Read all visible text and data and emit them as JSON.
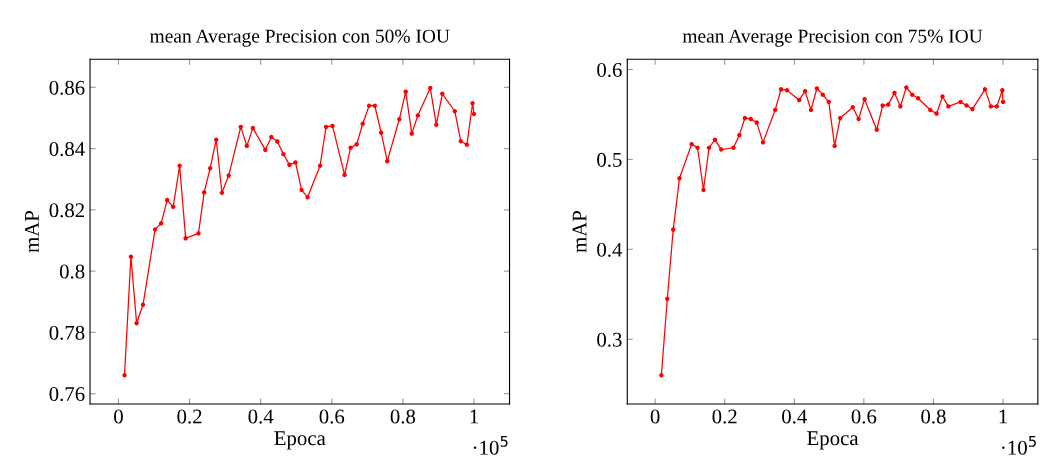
{
  "chart_data": [
    {
      "type": "line",
      "title": "mean Average Precision con 50% IOU",
      "xlabel": "Epoca",
      "ylabel": "mAP",
      "color": "#ff0000",
      "marker": "circle",
      "annotations": [
        "·10$^{5}$"
      ],
      "x": [
        0.017,
        0.035,
        0.051,
        0.069,
        0.103,
        0.12,
        0.137,
        0.154,
        0.172,
        0.189,
        0.225,
        0.241,
        0.258,
        0.275,
        0.291,
        0.31,
        0.344,
        0.361,
        0.378,
        0.413,
        0.43,
        0.447,
        0.464,
        0.481,
        0.498,
        0.515,
        0.532,
        0.567,
        0.584,
        0.602,
        0.636,
        0.653,
        0.67,
        0.687,
        0.705,
        0.721,
        0.739,
        0.756,
        0.79,
        0.808,
        0.825,
        0.842,
        0.877,
        0.894,
        0.911,
        0.946,
        0.963,
        0.98,
        0.996,
        1.0
      ],
      "values": [
        0.766,
        0.8047,
        0.783,
        0.789,
        0.8136,
        0.8156,
        0.8232,
        0.821,
        0.8344,
        0.8107,
        0.8123,
        0.8257,
        0.8336,
        0.8429,
        0.8256,
        0.8312,
        0.8471,
        0.8409,
        0.8467,
        0.8396,
        0.8438,
        0.8423,
        0.8382,
        0.8347,
        0.8355,
        0.8265,
        0.8241,
        0.8344,
        0.8471,
        0.8474,
        0.8314,
        0.8403,
        0.8414,
        0.8481,
        0.854,
        0.854,
        0.8452,
        0.8359,
        0.8496,
        0.8586,
        0.8449,
        0.8508,
        0.8598,
        0.8478,
        0.8579,
        0.8522,
        0.8424,
        0.8413,
        0.8548,
        0.8513
      ],
      "xlim": [
        -0.08,
        1.1
      ],
      "ylim": [
        0.7566,
        0.8692
      ],
      "xticks": [
        0,
        0.2,
        0.4,
        0.6,
        0.8,
        1
      ],
      "yticks": [
        0.76,
        0.78,
        0.8,
        0.82,
        0.84,
        0.86
      ]
    },
    {
      "type": "line",
      "title": "mean Average Precision con 75% IOU",
      "xlabel": "Epoca",
      "ylabel": "mAP",
      "color": "#ff0000",
      "marker": "circle",
      "annotations": [
        "·10$^{5}$"
      ],
      "x": [
        0.018,
        0.035,
        0.052,
        0.07,
        0.105,
        0.122,
        0.139,
        0.155,
        0.172,
        0.19,
        0.225,
        0.242,
        0.258,
        0.275,
        0.292,
        0.31,
        0.345,
        0.362,
        0.379,
        0.414,
        0.431,
        0.448,
        0.465,
        0.482,
        0.499,
        0.516,
        0.532,
        0.568,
        0.585,
        0.602,
        0.637,
        0.654,
        0.67,
        0.688,
        0.705,
        0.722,
        0.739,
        0.756,
        0.791,
        0.809,
        0.826,
        0.843,
        0.878,
        0.895,
        0.912,
        0.948,
        0.965,
        0.982,
        0.998,
        1.0
      ],
      "values": [
        0.26,
        0.345,
        0.422,
        0.479,
        0.517,
        0.513,
        0.466,
        0.513,
        0.522,
        0.511,
        0.513,
        0.527,
        0.546,
        0.545,
        0.541,
        0.519,
        0.555,
        0.578,
        0.577,
        0.566,
        0.576,
        0.555,
        0.579,
        0.572,
        0.564,
        0.515,
        0.546,
        0.558,
        0.545,
        0.567,
        0.533,
        0.56,
        0.561,
        0.574,
        0.559,
        0.58,
        0.572,
        0.568,
        0.555,
        0.551,
        0.57,
        0.559,
        0.564,
        0.56,
        0.556,
        0.578,
        0.559,
        0.559,
        0.577,
        0.564
      ],
      "xlim": [
        -0.08,
        1.1
      ],
      "ylim": [
        0.228,
        0.6115
      ],
      "xticks": [
        0,
        0.2,
        0.4,
        0.6,
        0.8,
        1
      ],
      "yticks": [
        0.3,
        0.4,
        0.5,
        0.6
      ]
    }
  ]
}
